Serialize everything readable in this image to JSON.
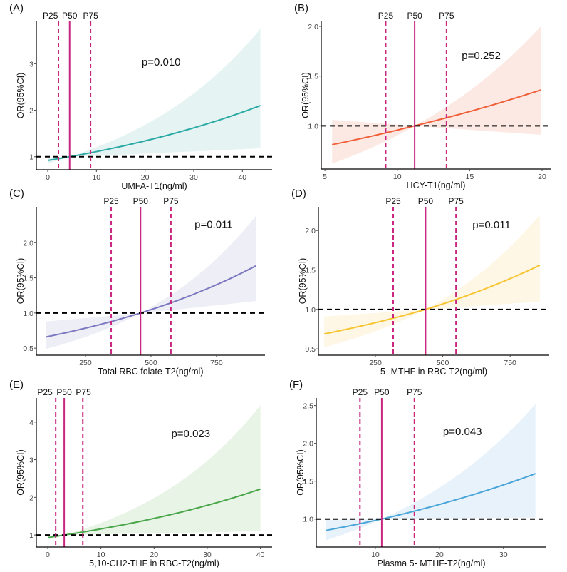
{
  "chart_data": [
    {
      "panel": "(A)",
      "type": "line",
      "xlabel": "UMFA-T1(ng/ml)",
      "ylabel": "OR(95%CI)",
      "xlim": [
        -2.34,
        46.1
      ],
      "ylim": [
        0.72,
        3.91
      ],
      "xticks": [
        {
          "v": 0,
          "l": "0"
        },
        {
          "v": 10,
          "l": "10"
        },
        {
          "v": 20,
          "l": "20"
        },
        {
          "v": 30,
          "l": "30"
        },
        {
          "v": 40,
          "l": "40"
        }
      ],
      "yticks": [
        {
          "v": 1,
          "l": "1"
        },
        {
          "v": 2,
          "l": "2"
        },
        {
          "v": 3,
          "l": "3"
        }
      ],
      "curve": {
        "x": [
          0,
          4.5,
          43.7
        ],
        "or": [
          0.92,
          1.0,
          2.1
        ],
        "lo": [
          0.86,
          1.0,
          1.18
        ],
        "hi": [
          0.98,
          1.0,
          3.75
        ]
      },
      "percentiles": [
        {
          "label": "P25",
          "x": 2.2,
          "style": "dashed"
        },
        {
          "label": "P50",
          "x": 4.5,
          "style": "solid"
        },
        {
          "label": "P75",
          "x": 8.8,
          "style": "dashed"
        }
      ],
      "reference_or": 1,
      "p_value": {
        "text": "p=0.010",
        "x": 23.3,
        "y": 2.96
      },
      "line_color": "#2aa9a5",
      "band_color": "#e5f4f2"
    },
    {
      "panel": "(B)",
      "type": "line",
      "xlabel": "HCY-T1(ng/ml)",
      "ylabel": "OR(95%CI)",
      "xlim": [
        4.75,
        20.59
      ],
      "ylim": [
        0.565,
        2.05
      ],
      "xticks": [
        {
          "v": 5,
          "l": "5"
        },
        {
          "v": 10,
          "l": "10"
        },
        {
          "v": 15,
          "l": "15"
        },
        {
          "v": 20,
          "l": "20"
        }
      ],
      "yticks": [
        {
          "v": 1,
          "l": "1.0"
        },
        {
          "v": 1.5,
          "l": "1.5"
        },
        {
          "v": 2,
          "l": "2.0"
        }
      ],
      "curve": {
        "x": [
          5.5,
          11.2,
          19.9
        ],
        "or": [
          0.81,
          1.0,
          1.36
        ],
        "lo": [
          0.62,
          1.0,
          0.91
        ],
        "hi": [
          1.06,
          1.0,
          2.0
        ]
      },
      "percentiles": [
        {
          "label": "P25",
          "x": 9.2,
          "style": "dashed"
        },
        {
          "label": "P50",
          "x": 11.2,
          "style": "solid"
        },
        {
          "label": "P75",
          "x": 13.4,
          "style": "dashed"
        }
      ],
      "reference_or": 1,
      "p_value": {
        "text": "p=0.252",
        "x": 15.8,
        "y": 1.67
      },
      "line_color": "#f0603a",
      "band_color": "#fce9e3"
    },
    {
      "panel": "(C)",
      "type": "line",
      "xlabel": "Total RBC folate-T2(ng/ml)",
      "ylabel": "OR(95%CI)",
      "xlim": [
        62.5,
        935
      ],
      "ylim": [
        0.4,
        2.51
      ],
      "xticks": [
        {
          "v": 250,
          "l": "250"
        },
        {
          "v": 500,
          "l": "500"
        },
        {
          "v": 750,
          "l": "750"
        }
      ],
      "yticks": [
        {
          "v": 0.5,
          "l": "0.5"
        },
        {
          "v": 1,
          "l": "1.0"
        },
        {
          "v": 1.5,
          "l": "1.5"
        },
        {
          "v": 2,
          "l": "2.0"
        }
      ],
      "curve": {
        "x": [
          100,
          460,
          900
        ],
        "or": [
          0.66,
          1.0,
          1.67
        ],
        "lo": [
          0.49,
          1.0,
          1.17
        ],
        "hi": [
          0.88,
          1.0,
          2.38
        ]
      },
      "percentiles": [
        {
          "label": "P25",
          "x": 348,
          "style": "dashed"
        },
        {
          "label": "P50",
          "x": 460,
          "style": "solid"
        },
        {
          "label": "P75",
          "x": 576,
          "style": "dashed"
        }
      ],
      "reference_or": 1,
      "p_value": {
        "text": "p=0.011",
        "x": 739,
        "y": 2.21
      },
      "line_color": "#7b78c0",
      "band_color": "#eeeef6"
    },
    {
      "panel": "(D)",
      "type": "line",
      "xlabel": "5- MTHF in RBC-T2(ng/ml)",
      "ylabel": "OR(95%CI)",
      "xlim": [
        38.4,
        895
      ],
      "ylim": [
        0.42,
        2.3
      ],
      "xticks": [
        {
          "v": 250,
          "l": "250"
        },
        {
          "v": 500,
          "l": "500"
        },
        {
          "v": 750,
          "l": "750"
        }
      ],
      "yticks": [
        {
          "v": 0.5,
          "l": "0.5"
        },
        {
          "v": 1,
          "l": "1.0"
        },
        {
          "v": 1.5,
          "l": "1.5"
        },
        {
          "v": 2,
          "l": "2.0"
        }
      ],
      "curve": {
        "x": [
          60,
          436,
          860
        ],
        "or": [
          0.69,
          1.0,
          1.56
        ],
        "lo": [
          0.52,
          1.0,
          1.1
        ],
        "hi": [
          0.91,
          1.0,
          2.2
        ]
      },
      "percentiles": [
        {
          "label": "P25",
          "x": 316,
          "style": "dashed"
        },
        {
          "label": "P50",
          "x": 436,
          "style": "solid"
        },
        {
          "label": "P75",
          "x": 549,
          "style": "dashed"
        }
      ],
      "reference_or": 1,
      "p_value": {
        "text": "p=0.011",
        "x": 681,
        "y": 2.03
      },
      "line_color": "#f6c531",
      "band_color": "#fef7e5"
    },
    {
      "panel": "(E)",
      "type": "line",
      "xlabel": "5,10-CH2-THF in RBC-T2(ng/ml)",
      "ylabel": "OR(95%CI)",
      "xlim": [
        -2.14,
        42.2
      ],
      "ylim": [
        0.68,
        4.64
      ],
      "xticks": [
        {
          "v": 0,
          "l": "0"
        },
        {
          "v": 10,
          "l": "10"
        },
        {
          "v": 20,
          "l": "20"
        },
        {
          "v": 30,
          "l": "30"
        },
        {
          "v": 40,
          "l": "40"
        }
      ],
      "yticks": [
        {
          "v": 1,
          "l": "1"
        },
        {
          "v": 2,
          "l": "2"
        },
        {
          "v": 3,
          "l": "3"
        },
        {
          "v": 4,
          "l": "4"
        }
      ],
      "curve": {
        "x": [
          0,
          3.1,
          40
        ],
        "or": [
          0.93,
          1.0,
          2.22
        ],
        "lo": [
          0.88,
          1.0,
          1.1
        ],
        "hi": [
          0.98,
          1.0,
          4.45
        ]
      },
      "percentiles": [
        {
          "label": "P25",
          "x": 1.5,
          "style": "dashed"
        },
        {
          "label": "P50",
          "x": 3.1,
          "style": "solid"
        },
        {
          "label": "P75",
          "x": 6.6,
          "style": "dashed"
        }
      ],
      "reference_or": 1,
      "p_value": {
        "text": "p=0.023",
        "x": 26.9,
        "y": 3.6
      },
      "line_color": "#4aa64a",
      "band_color": "#e8f4e5"
    },
    {
      "panel": "(F)",
      "type": "line",
      "xlabel": "Plasma 5- MTHF-T2(ng/ml)",
      "ylabel": "OR(95%CI)",
      "xlim": [
        0.78,
        36.7
      ],
      "ylim": [
        0.63,
        2.6
      ],
      "xticks": [
        {
          "v": 10,
          "l": "10"
        },
        {
          "v": 20,
          "l": "20"
        },
        {
          "v": 30,
          "l": "30"
        }
      ],
      "yticks": [
        {
          "v": 1,
          "l": "1.0"
        },
        {
          "v": 1.5,
          "l": "1.5"
        },
        {
          "v": 2,
          "l": "2.0"
        },
        {
          "v": 2.5,
          "l": "2.5"
        }
      ],
      "curve": {
        "x": [
          2.3,
          11.0,
          35
        ],
        "or": [
          0.85,
          1.0,
          1.6
        ],
        "lo": [
          0.72,
          1.0,
          1.02
        ],
        "hi": [
          0.99,
          1.0,
          2.52
        ]
      },
      "percentiles": [
        {
          "label": "P25",
          "x": 7.6,
          "style": "dashed"
        },
        {
          "label": "P50",
          "x": 11.0,
          "style": "solid"
        },
        {
          "label": "P75",
          "x": 16.1,
          "style": "dashed"
        }
      ],
      "reference_or": 1,
      "p_value": {
        "text": "p=0.043",
        "x": 23.6,
        "y": 2.11
      },
      "line_color": "#4aa5d8",
      "band_color": "#e8f2fa"
    }
  ],
  "percentile_color": "#c8267f",
  "reference_line_color": "#000000"
}
